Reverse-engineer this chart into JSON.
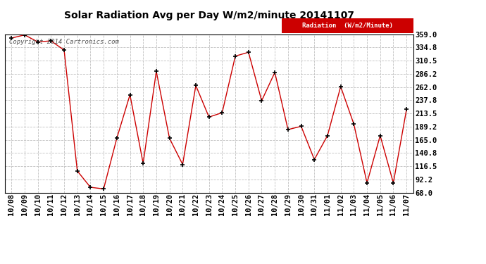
{
  "title": "Solar Radiation Avg per Day W/m2/minute 20141107",
  "copyright": "Copyright 2014 Cartronics.com",
  "legend_label": "Radiation  (W/m2/Minute)",
  "legend_bg": "#cc0000",
  "legend_text_color": "#ffffff",
  "line_color": "#cc0000",
  "marker_color": "#000000",
  "bg_color": "#ffffff",
  "plot_bg_color": "#ffffff",
  "grid_color": "#c0c0c0",
  "title_color": "#000000",
  "copyright_color": "#555555",
  "labels": [
    "10/08",
    "10/09",
    "10/10",
    "10/11",
    "10/12",
    "10/13",
    "10/14",
    "10/15",
    "10/16",
    "10/17",
    "10/18",
    "10/19",
    "10/20",
    "10/21",
    "10/22",
    "10/23",
    "10/24",
    "10/25",
    "10/26",
    "10/27",
    "10/28",
    "10/29",
    "10/30",
    "10/31",
    "11/01",
    "11/02",
    "11/03",
    "11/04",
    "11/05",
    "11/06",
    "11/07"
  ],
  "values": [
    352,
    358,
    345,
    347,
    330,
    108,
    78,
    75,
    168,
    248,
    122,
    291,
    168,
    120,
    265,
    207,
    215,
    319,
    326,
    237,
    289,
    184,
    190,
    129,
    173,
    263,
    194,
    86,
    173,
    86,
    221
  ],
  "ylim": [
    68.0,
    359.0
  ],
  "yticks": [
    68.0,
    92.2,
    116.5,
    140.8,
    165.0,
    189.2,
    213.5,
    237.8,
    262.0,
    286.2,
    310.5,
    334.8,
    359.0
  ],
  "title_fontsize": 10,
  "tick_fontsize": 7.5,
  "copyright_fontsize": 6.5
}
